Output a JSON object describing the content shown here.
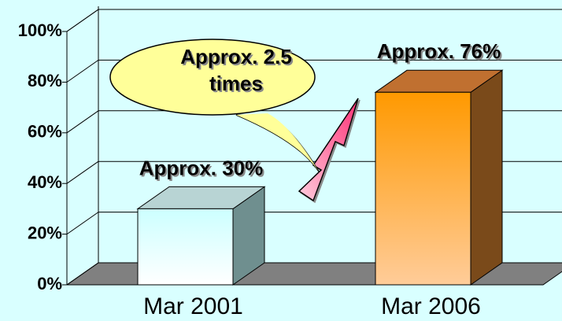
{
  "chart_data": {
    "type": "bar3d",
    "categories": [
      "Mar 2001",
      "Mar 2006"
    ],
    "values": [
      30,
      76
    ],
    "value_labels": [
      "Approx. 30%",
      "Approx. 76%"
    ],
    "ylim": [
      0,
      100
    ],
    "yticks": [
      {
        "value": 0,
        "label": "0%"
      },
      {
        "value": 20,
        "label": "20%"
      },
      {
        "value": 40,
        "label": "40%"
      },
      {
        "value": 60,
        "label": "60%"
      },
      {
        "value": 80,
        "label": "80%"
      },
      {
        "value": 100,
        "label": "100%"
      }
    ],
    "grid": true,
    "annotation": [
      "Approx. 2.5",
      "times"
    ]
  }
}
